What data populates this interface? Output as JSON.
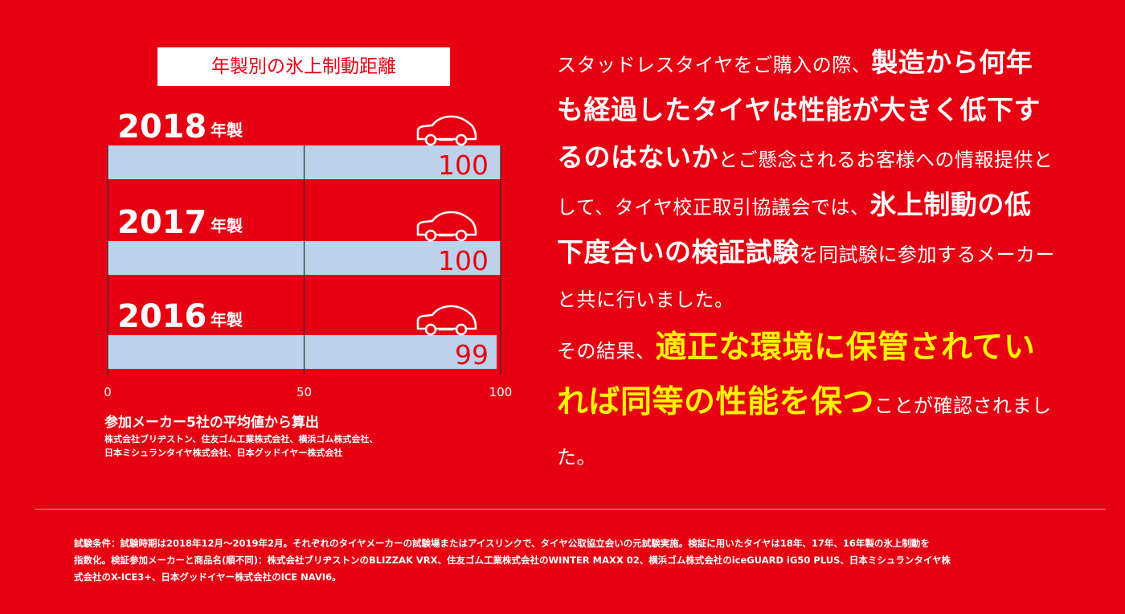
{
  "chart_data": {
    "type": "bar",
    "orientation": "horizontal",
    "title": "年製別の氷上制動距離",
    "categories": [
      "2018",
      "2017",
      "2016"
    ],
    "category_suffix": "年製",
    "values": [
      100,
      100,
      99
    ],
    "xlim": [
      0,
      100
    ],
    "xticks": [
      0,
      50,
      100
    ],
    "xtick_labels": [
      "0",
      "50",
      "100"
    ],
    "grid": true,
    "bar_color": "#bcd2ea",
    "value_label_color": "#e60012",
    "icon": "car-icon"
  },
  "source": {
    "main": "参加メーカー5社の平均値から算出",
    "lines": [
      "株式会社ブリヂストン、住友ゴム工業株式会社、横浜ゴム株式会社、",
      "日本ミシュランタイヤ株式会社、日本グッドイヤー株式会社"
    ]
  },
  "description": {
    "p1": [
      {
        "text": "スタッドレスタイヤをご購入の際、",
        "style": "normal"
      },
      {
        "text": "製造から何年も経過したタイヤは性能が大きく低下するのはないか",
        "style": "em"
      },
      {
        "text": "とご懸念されるお客様への情報提供として、タイヤ校正取引協議会では、",
        "style": "normal"
      },
      {
        "text": "氷上制動の低下度合いの検証試験",
        "style": "em"
      },
      {
        "text": "を同試験に参加するメーカーと共に行いました。",
        "style": "normal"
      }
    ],
    "p2": [
      {
        "text": "その結果、",
        "style": "normal"
      },
      {
        "text": "適正な環境に保管されていれば同等の性能を保つ",
        "style": "hl"
      },
      {
        "text": "ことが確認されました。",
        "style": "normal"
      }
    ]
  },
  "footnote": [
    "試験条件：試験時期は2018年12月～2019年2月。それぞれのタイヤメーカーの試験場またはアイスリンクで、タイヤ公取協立会いの元試験実施。検証に用いたタイヤは18年、17年、16年製の氷上制動を",
    "指数化。検証参加メーカーと商品名(順不同)：株式会社ブリヂストンのBLIZZAK VRX、住友ゴム工業株式会社のWINTER MAXX 02、横浜ゴム株式会社のiceGUARD iG50 PLUS、日本ミシュランタイヤ株",
    "式会社のX-ICE3+、日本グッドイヤー株式会社のICE NAVI6。"
  ],
  "colors": {
    "background": "#e60012",
    "highlight": "#fff200",
    "text": "#ffffff"
  }
}
